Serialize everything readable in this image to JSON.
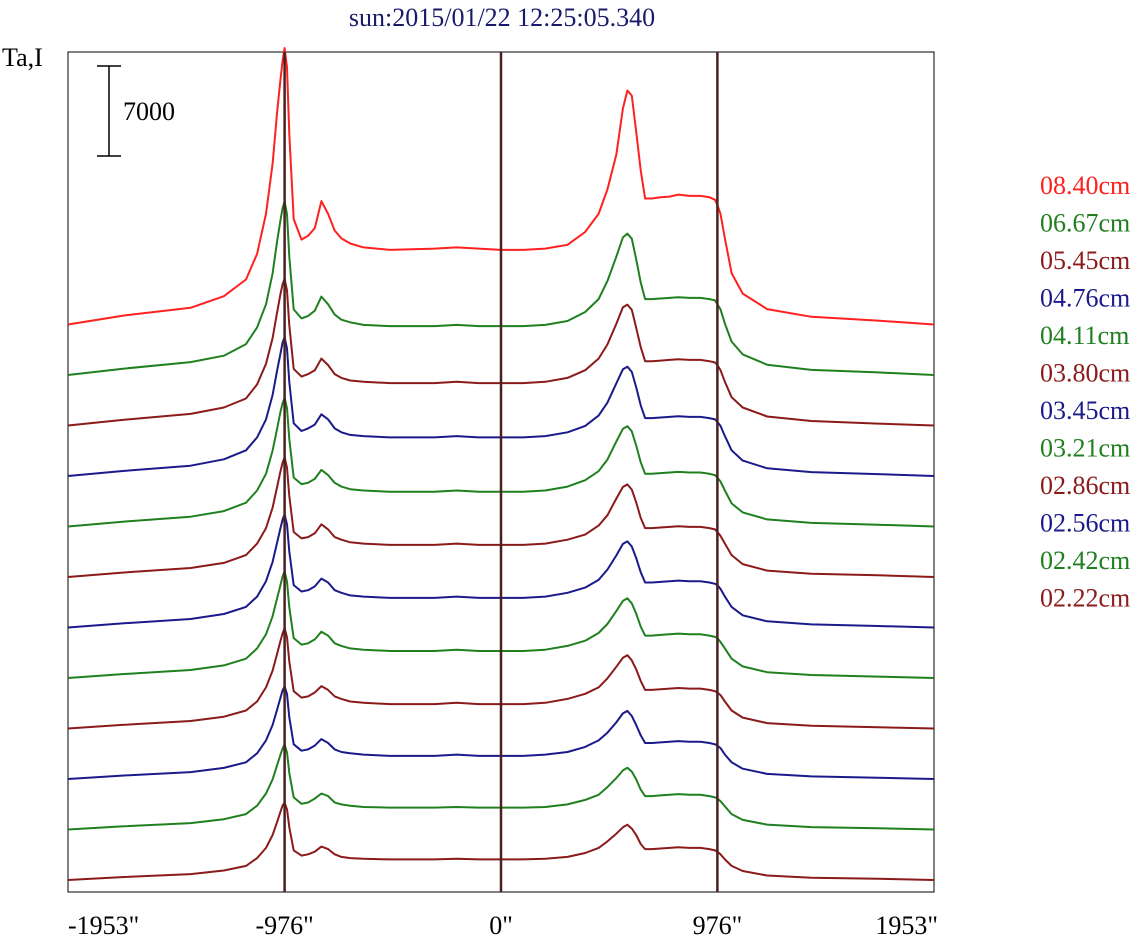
{
  "chart_data": {
    "type": "line",
    "title": "sun:2015/01/22 12:25:05.340",
    "ylabel": "Ta,I",
    "scale_bar_label": "7000",
    "xlabel": "",
    "xlim": [
      -1953,
      1953
    ],
    "x_tick_labels": [
      "-1953\"",
      "-976\"",
      "0\"",
      "976\"",
      "1953\""
    ],
    "x_ticks": [
      -1953,
      -976,
      0,
      976,
      1953
    ],
    "vertical_markers": [
      -976,
      0,
      976
    ],
    "marker_color": "#4a2020",
    "grid": false,
    "legend_position": "right",
    "x": [
      -1953,
      -1700,
      -1400,
      -1250,
      -1150,
      -1100,
      -1060,
      -1030,
      -1010,
      -995,
      -985,
      -976,
      -965,
      -955,
      -935,
      -900,
      -870,
      -840,
      -810,
      -780,
      -750,
      -720,
      -680,
      -620,
      -500,
      -300,
      -200,
      -100,
      0,
      100,
      200,
      300,
      380,
      440,
      480,
      520,
      550,
      570,
      590,
      610,
      630,
      650,
      680,
      720,
      760,
      800,
      850,
      900,
      940,
      965,
      976,
      990,
      1010,
      1040,
      1090,
      1200,
      1400,
      1700,
      1953
    ],
    "series": [
      {
        "name": "08.40cm",
        "color": "#ff2020",
        "values": [
          0,
          700,
          1300,
          2200,
          3500,
          5500,
          8600,
          12500,
          16500,
          19000,
          20500,
          21500,
          20000,
          14800,
          8200,
          6600,
          6900,
          7500,
          9600,
          8600,
          7300,
          6700,
          6300,
          6000,
          5800,
          5900,
          6000,
          5900,
          5800,
          5800,
          5900,
          6200,
          7200,
          8600,
          10500,
          13200,
          16800,
          18200,
          17800,
          15000,
          12000,
          9800,
          9800,
          9900,
          9950,
          10100,
          10000,
          10000,
          9900,
          9700,
          9300,
          8600,
          6700,
          4000,
          2400,
          1200,
          600,
          300,
          0
        ]
      },
      {
        "name": "06.67cm",
        "color": "#208020",
        "values": [
          0,
          500,
          1000,
          1500,
          2400,
          3700,
          5500,
          7900,
          10400,
          12000,
          13000,
          13500,
          12500,
          9200,
          5100,
          4400,
          4600,
          5000,
          6100,
          5500,
          4700,
          4300,
          4100,
          3900,
          3800,
          3800,
          3900,
          3800,
          3800,
          3800,
          3900,
          4200,
          4900,
          5900,
          7300,
          9200,
          10700,
          11000,
          10600,
          9000,
          7200,
          5900,
          5900,
          5950,
          6000,
          6050,
          6000,
          6000,
          5900,
          5800,
          5500,
          5100,
          4000,
          2600,
          1600,
          800,
          400,
          200,
          0
        ]
      },
      {
        "name": "05.45cm",
        "color": "#8b1a1a",
        "values": [
          0,
          450,
          900,
          1400,
          2100,
          3200,
          4800,
          6800,
          8800,
          10200,
          11000,
          11400,
          10500,
          7800,
          4400,
          3800,
          4000,
          4300,
          5200,
          4700,
          4000,
          3700,
          3500,
          3400,
          3300,
          3300,
          3400,
          3300,
          3300,
          3300,
          3400,
          3700,
          4300,
          5200,
          6300,
          7900,
          9200,
          9400,
          9000,
          7600,
          6100,
          5000,
          5000,
          5050,
          5100,
          5150,
          5100,
          5100,
          5000,
          4900,
          4700,
          4300,
          3400,
          2200,
          1400,
          700,
          350,
          150,
          0
        ]
      },
      {
        "name": "04.76cm",
        "color": "#1a1a8b",
        "values": [
          0,
          400,
          800,
          1300,
          2000,
          3000,
          4400,
          6300,
          8200,
          9500,
          10400,
          10800,
          9900,
          7300,
          4100,
          3500,
          3700,
          4000,
          4800,
          4400,
          3700,
          3400,
          3200,
          3100,
          3000,
          3000,
          3100,
          3000,
          3000,
          3000,
          3100,
          3400,
          3900,
          4700,
          5700,
          7200,
          8300,
          8500,
          8100,
          6900,
          5500,
          4500,
          4500,
          4550,
          4600,
          4650,
          4600,
          4600,
          4500,
          4400,
          4200,
          3900,
          3100,
          2000,
          1200,
          600,
          300,
          150,
          0
        ]
      },
      {
        "name": "04.11cm",
        "color": "#208020",
        "values": [
          0,
          380,
          760,
          1200,
          1850,
          2800,
          4100,
          5900,
          7600,
          8900,
          9600,
          10000,
          9200,
          6800,
          3800,
          3300,
          3400,
          3700,
          4400,
          4000,
          3400,
          3100,
          2900,
          2800,
          2700,
          2700,
          2800,
          2700,
          2700,
          2700,
          2800,
          3100,
          3600,
          4300,
          5200,
          6600,
          7600,
          7800,
          7400,
          6300,
          5000,
          4100,
          4100,
          4150,
          4200,
          4250,
          4200,
          4200,
          4100,
          4000,
          3800,
          3500,
          2800,
          1800,
          1100,
          550,
          280,
          140,
          0
        ]
      },
      {
        "name": "03.80cm",
        "color": "#8b1a1a",
        "values": [
          0,
          350,
          700,
          1100,
          1700,
          2600,
          3800,
          5400,
          7000,
          8200,
          8900,
          9300,
          8500,
          6300,
          3500,
          3000,
          3100,
          3400,
          4100,
          3700,
          3100,
          2900,
          2700,
          2600,
          2500,
          2500,
          2600,
          2500,
          2500,
          2500,
          2600,
          2900,
          3300,
          4000,
          4800,
          6100,
          7000,
          7200,
          6800,
          5800,
          4600,
          3800,
          3800,
          3850,
          3900,
          3950,
          3900,
          3900,
          3800,
          3700,
          3500,
          3200,
          2600,
          1700,
          1000,
          500,
          250,
          130,
          0
        ]
      },
      {
        "name": "03.45cm",
        "color": "#1a1a8b",
        "values": [
          0,
          330,
          660,
          1050,
          1600,
          2400,
          3600,
          5100,
          6600,
          7700,
          8400,
          8800,
          8000,
          5900,
          3300,
          2800,
          2900,
          3200,
          3800,
          3500,
          2900,
          2700,
          2500,
          2400,
          2300,
          2300,
          2400,
          2300,
          2300,
          2300,
          2400,
          2700,
          3100,
          3700,
          4500,
          5600,
          6500,
          6700,
          6300,
          5400,
          4300,
          3500,
          3500,
          3550,
          3600,
          3650,
          3600,
          3600,
          3500,
          3400,
          3300,
          3000,
          2400,
          1600,
          950,
          480,
          240,
          120,
          0
        ]
      },
      {
        "name": "03.21cm",
        "color": "#208020",
        "values": [
          0,
          310,
          620,
          980,
          1500,
          2300,
          3400,
          4800,
          6200,
          7200,
          7900,
          8300,
          7500,
          5500,
          3100,
          2600,
          2700,
          3000,
          3600,
          3300,
          2700,
          2500,
          2300,
          2200,
          2100,
          2100,
          2200,
          2100,
          2100,
          2100,
          2200,
          2500,
          2900,
          3500,
          4200,
          5200,
          6000,
          6200,
          5800,
          5000,
          4000,
          3300,
          3300,
          3350,
          3400,
          3450,
          3400,
          3400,
          3300,
          3200,
          3100,
          2800,
          2300,
          1500,
          900,
          450,
          230,
          110,
          0
        ]
      },
      {
        "name": "02.86cm",
        "color": "#8b1a1a",
        "values": [
          0,
          290,
          580,
          920,
          1400,
          2100,
          3200,
          4500,
          5800,
          6800,
          7400,
          7800,
          7100,
          5200,
          2900,
          2400,
          2500,
          2800,
          3300,
          3000,
          2500,
          2300,
          2100,
          2000,
          1900,
          1900,
          2000,
          1900,
          1900,
          1900,
          2000,
          2300,
          2700,
          3200,
          3900,
          4800,
          5500,
          5700,
          5300,
          4600,
          3700,
          3000,
          3000,
          3050,
          3100,
          3150,
          3100,
          3100,
          3000,
          2900,
          2800,
          2600,
          2100,
          1400,
          850,
          420,
          210,
          100,
          0
        ]
      },
      {
        "name": "02.56cm",
        "color": "#1a1a8b",
        "values": [
          0,
          270,
          540,
          860,
          1300,
          2000,
          3000,
          4200,
          5400,
          6300,
          6900,
          7200,
          6600,
          4800,
          2700,
          2200,
          2300,
          2600,
          3100,
          2800,
          2300,
          2100,
          2000,
          1900,
          1800,
          1800,
          1900,
          1800,
          1800,
          1800,
          1900,
          2100,
          2500,
          3000,
          3600,
          4400,
          5100,
          5300,
          4900,
          4200,
          3400,
          2800,
          2800,
          2850,
          2900,
          2950,
          2900,
          2900,
          2800,
          2700,
          2600,
          2400,
          1900,
          1300,
          800,
          400,
          200,
          100,
          0
        ]
      },
      {
        "name": "02.42cm",
        "color": "#208020",
        "values": [
          0,
          250,
          500,
          800,
          1200,
          1850,
          2800,
          3900,
          5000,
          5800,
          6300,
          6600,
          6000,
          4400,
          2500,
          2000,
          2100,
          2400,
          2800,
          2600,
          2100,
          1950,
          1850,
          1750,
          1700,
          1700,
          1750,
          1700,
          1700,
          1700,
          1750,
          1950,
          2300,
          2700,
          3300,
          4000,
          4600,
          4800,
          4500,
          3900,
          3100,
          2600,
          2600,
          2650,
          2700,
          2750,
          2700,
          2700,
          2600,
          2500,
          2400,
          2200,
          1800,
          1200,
          750,
          380,
          190,
          90,
          0
        ]
      },
      {
        "name": "02.22cm",
        "color": "#8b1a1a",
        "values": [
          0,
          230,
          460,
          740,
          1100,
          1700,
          2500,
          3500,
          4500,
          5300,
          5800,
          6000,
          5500,
          4100,
          2300,
          1900,
          2000,
          2200,
          2600,
          2400,
          2000,
          1800,
          1700,
          1650,
          1600,
          1600,
          1650,
          1600,
          1600,
          1600,
          1650,
          1800,
          2100,
          2500,
          3000,
          3600,
          4100,
          4300,
          4000,
          3500,
          2800,
          2400,
          2400,
          2450,
          2500,
          2550,
          2500,
          2500,
          2400,
          2300,
          2200,
          2000,
          1600,
          1100,
          700,
          350,
          180,
          90,
          0
        ]
      }
    ]
  }
}
